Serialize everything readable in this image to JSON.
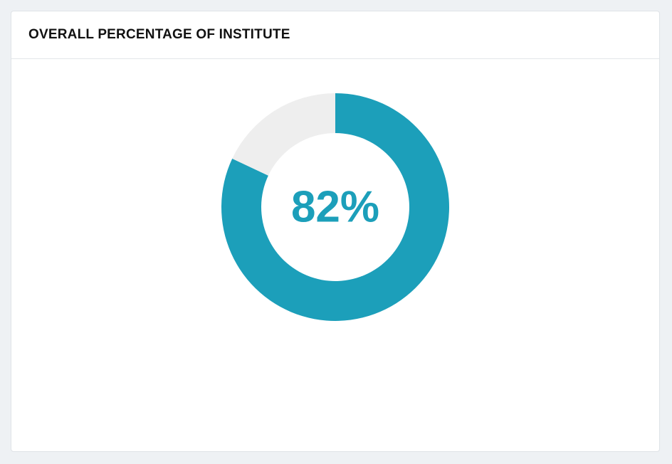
{
  "chart_data": {
    "type": "donut",
    "title": "OVERALL PERCENTAGE OF INSTITUTE",
    "values": [
      82,
      18
    ],
    "value_labels": [
      "82%",
      null
    ],
    "colors": [
      "#1c9fba",
      "#eeeeee"
    ]
  }
}
